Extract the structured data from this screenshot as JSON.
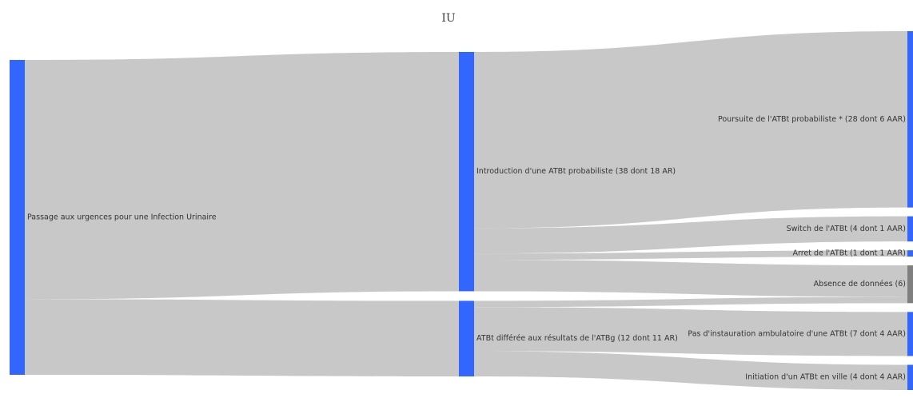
{
  "chart_data": {
    "type": "sankey",
    "title": "IU",
    "colors": {
      "node": "#3366ff",
      "node_no_data": "#7f7f7f",
      "link": "#c8c8c8",
      "background": "#ffffff",
      "title": "#444444",
      "label": "#333333"
    },
    "nodes": [
      {
        "id": "passage",
        "column": 0,
        "value": 50,
        "label": "Passage aux urgences pour une Infection Urinaire"
      },
      {
        "id": "introduction",
        "column": 1,
        "value": 38,
        "label": "Introduction d'une ATBt probabiliste (38 dont 18 AR)"
      },
      {
        "id": "differee",
        "column": 1,
        "value": 12,
        "label": "ATBt différée aux résultats de l'ATBg (12 dont 11 AR)"
      },
      {
        "id": "poursuite",
        "column": 2,
        "value": 28,
        "label": "Poursuite de l'ATBt probabiliste * (28 dont 6 AAR)"
      },
      {
        "id": "switch",
        "column": 2,
        "value": 4,
        "label": "Switch de l'ATBt (4 dont 1 AAR)"
      },
      {
        "id": "arret",
        "column": 2,
        "value": 1,
        "label": "Arret de l'ATBt (1 dont 1 AAR)"
      },
      {
        "id": "absence",
        "column": 2,
        "value": 6,
        "label": "Absence de données (6)",
        "no_data": true
      },
      {
        "id": "pas_instauration",
        "column": 2,
        "value": 7,
        "label": "Pas d'instauration ambulatoire d'une ATBt (7 dont 4 AAR)"
      },
      {
        "id": "initiation",
        "column": 2,
        "value": 4,
        "label": "Initiation d'un ATBt en ville (4 dont 4 AAR)"
      }
    ],
    "links": [
      {
        "source": "passage",
        "target": "introduction",
        "value": 38
      },
      {
        "source": "passage",
        "target": "differee",
        "value": 12
      },
      {
        "source": "introduction",
        "target": "poursuite",
        "value": 28
      },
      {
        "source": "introduction",
        "target": "switch",
        "value": 4
      },
      {
        "source": "introduction",
        "target": "arret",
        "value": 1
      },
      {
        "source": "introduction",
        "target": "absence",
        "value": 5
      },
      {
        "source": "differee",
        "target": "absence",
        "value": 1
      },
      {
        "source": "differee",
        "target": "pas_instauration",
        "value": 7
      },
      {
        "source": "differee",
        "target": "initiation",
        "value": 4
      }
    ]
  }
}
